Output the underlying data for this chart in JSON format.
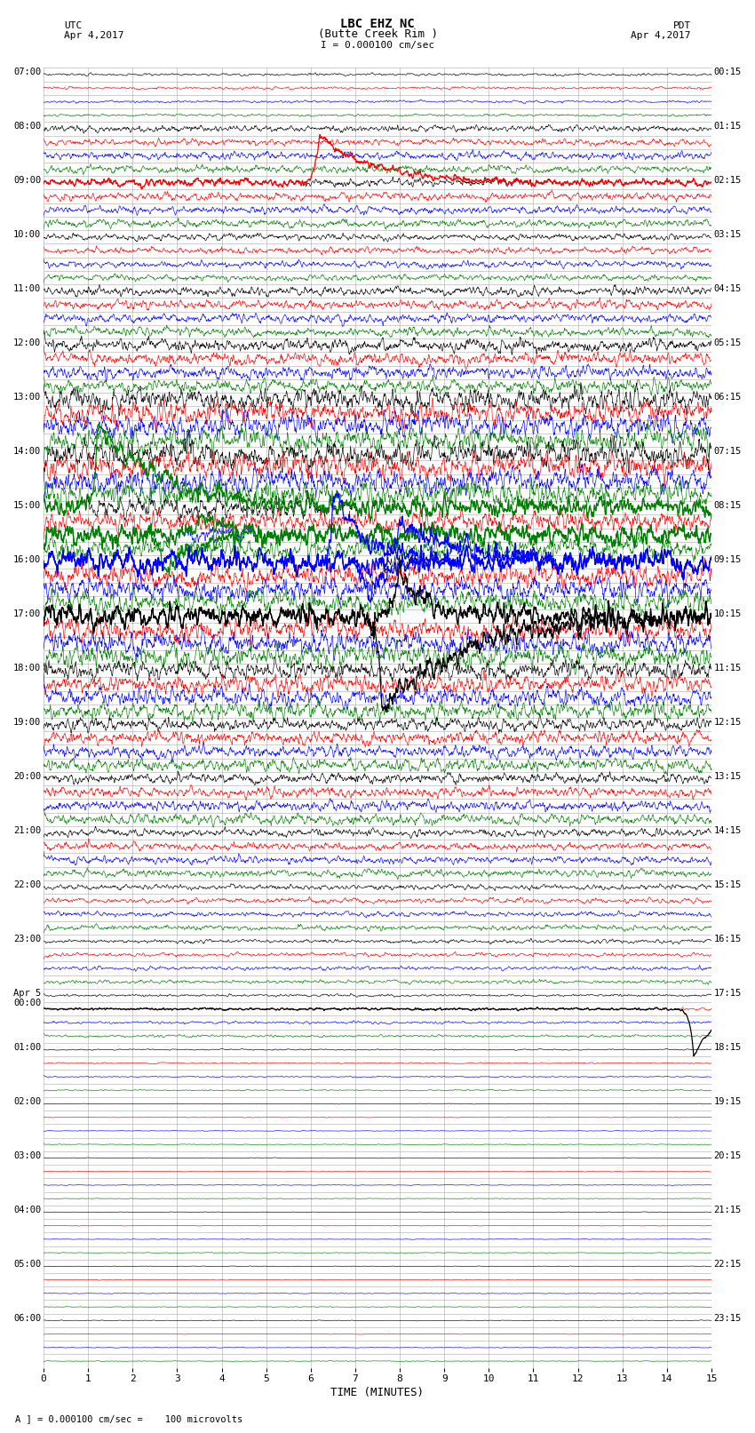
{
  "title_line1": "LBC EHZ NC",
  "title_line2": "(Butte Creek Rim )",
  "scale_text": "I = 0.000100 cm/sec",
  "left_top1": "UTC",
  "left_top2": "Apr 4,2017",
  "right_top1": "PDT",
  "right_top2": "Apr 4,2017",
  "x_label": "TIME (MINUTES)",
  "footer": "A ] = 0.000100 cm/sec =    100 microvolts",
  "x_min": 0,
  "x_max": 15,
  "background_color": "#ffffff",
  "grid_color": "#aaaaaa",
  "colors_cycle": [
    "black",
    "red",
    "blue",
    "green"
  ],
  "num_rows": 96,
  "rows_per_hour": 4,
  "utc_hour_labels": [
    "07:00",
    "08:00",
    "09:00",
    "10:00",
    "11:00",
    "12:00",
    "13:00",
    "14:00",
    "15:00",
    "16:00",
    "17:00",
    "18:00",
    "19:00",
    "20:00",
    "21:00",
    "22:00",
    "23:00",
    "Apr 5\n00:00",
    "01:00",
    "02:00",
    "03:00",
    "04:00",
    "05:00",
    "06:00"
  ],
  "pdt_hour_labels": [
    "00:15",
    "01:15",
    "02:15",
    "03:15",
    "04:15",
    "05:15",
    "06:15",
    "07:15",
    "08:15",
    "09:15",
    "10:15",
    "11:15",
    "12:15",
    "13:15",
    "14:15",
    "15:15",
    "16:15",
    "17:15",
    "18:15",
    "19:15",
    "20:15",
    "21:15",
    "22:15",
    "23:15"
  ],
  "row_amplitudes": [
    0.02,
    0.02,
    0.02,
    0.02,
    0.05,
    0.05,
    0.06,
    0.06,
    0.06,
    0.06,
    0.06,
    0.06,
    0.05,
    0.05,
    0.05,
    0.05,
    0.07,
    0.07,
    0.07,
    0.07,
    0.1,
    0.1,
    0.1,
    0.1,
    0.18,
    0.18,
    0.18,
    0.18,
    0.2,
    0.2,
    0.2,
    0.2,
    0.16,
    0.16,
    0.16,
    0.16,
    0.18,
    0.18,
    0.18,
    0.18,
    0.18,
    0.18,
    0.18,
    0.18,
    0.14,
    0.14,
    0.14,
    0.14,
    0.1,
    0.1,
    0.1,
    0.1,
    0.08,
    0.08,
    0.08,
    0.08,
    0.06,
    0.06,
    0.06,
    0.06,
    0.04,
    0.04,
    0.04,
    0.04,
    0.03,
    0.03,
    0.03,
    0.03,
    0.02,
    0.02,
    0.02,
    0.02,
    0.01,
    0.01,
    0.01,
    0.01,
    0.005,
    0.005,
    0.005,
    0.005,
    0.005,
    0.005,
    0.005,
    0.005,
    0.005,
    0.005,
    0.005,
    0.005,
    0.005,
    0.005,
    0.005,
    0.005,
    0.005,
    0.005,
    0.005,
    0.005
  ],
  "events": [
    {
      "row": 8,
      "t": 6.2,
      "amp": 3.5,
      "color": "red",
      "dir": 1,
      "rise": 0.1,
      "decay": 1.2
    },
    {
      "row": 32,
      "t": 1.2,
      "amp": 6.0,
      "color": "green",
      "dir": 1,
      "rise": 0.06,
      "decay": 1.5
    },
    {
      "row": 34,
      "t": 2.7,
      "amp": 2.5,
      "color": "green",
      "dir": -1,
      "rise": 0.15,
      "decay": 0.8
    },
    {
      "row": 34,
      "t": 3.5,
      "amp": 1.5,
      "color": "green",
      "dir": 1,
      "rise": 0.12,
      "decay": 0.5
    },
    {
      "row": 36,
      "t": 6.5,
      "amp": 5.0,
      "color": "blue",
      "dir": 1,
      "rise": 0.06,
      "decay": 0.8
    },
    {
      "row": 36,
      "t": 7.3,
      "amp": 2.0,
      "color": "blue",
      "dir": -1,
      "rise": 0.15,
      "decay": 0.4
    },
    {
      "row": 36,
      "t": 8.0,
      "amp": 2.8,
      "color": "blue",
      "dir": 1,
      "rise": 0.15,
      "decay": 1.5
    },
    {
      "row": 40,
      "t": 7.6,
      "amp": 7.0,
      "color": "black",
      "dir": -1,
      "rise": 0.08,
      "decay": 1.8
    },
    {
      "row": 40,
      "t": 8.0,
      "amp": 3.0,
      "color": "black",
      "dir": 1,
      "rise": 0.15,
      "decay": 0.6
    },
    {
      "row": 69,
      "t": 14.6,
      "amp": 3.5,
      "color": "black",
      "dir": -1,
      "rise": 0.08,
      "decay": 0.5
    }
  ],
  "lw": 0.45,
  "event_lw": 0.9
}
